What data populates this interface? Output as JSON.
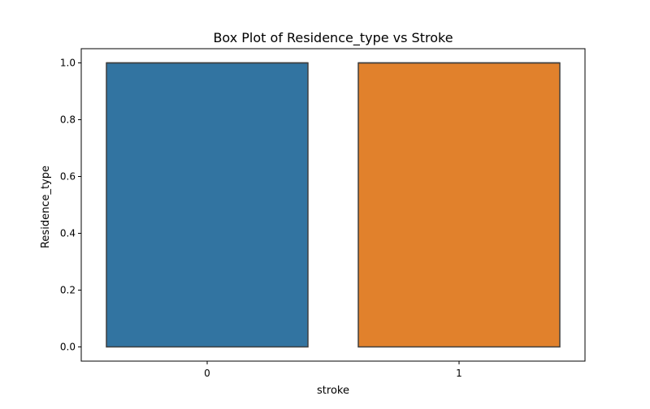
{
  "chart_data": {
    "type": "box",
    "title": "Box Plot of Residence_type vs Stroke",
    "xlabel": "stroke",
    "ylabel": "Residence_type",
    "categories": [
      "0",
      "1"
    ],
    "boxes": [
      {
        "category": "0",
        "min": 0.0,
        "q1": 0.0,
        "median": 1.0,
        "q3": 1.0,
        "max": 1.0,
        "color": "#3274a1"
      },
      {
        "category": "1",
        "min": 0.0,
        "q1": 0.0,
        "median": 1.0,
        "q3": 1.0,
        "max": 1.0,
        "color": "#e1812c"
      }
    ],
    "ylim": [
      -0.05,
      1.05
    ],
    "yticks": [
      0.0,
      0.2,
      0.4,
      0.6,
      0.8,
      1.0
    ],
    "ytick_labels": [
      "0.0",
      "0.2",
      "0.4",
      "0.6",
      "0.8",
      "1.0"
    ],
    "grid": false,
    "legend": "none"
  }
}
